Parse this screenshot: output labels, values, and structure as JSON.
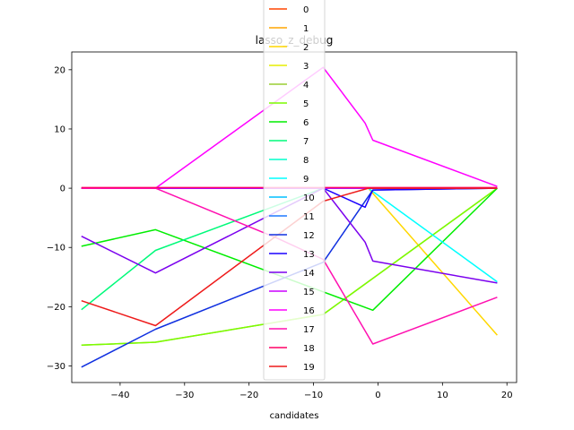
{
  "chart_data": {
    "type": "line",
    "title": "lasso_z_debug",
    "xlabel": "candidates",
    "ylabel": "",
    "xlim": [
      -47.5,
      21.5
    ],
    "ylim": [
      -32.8,
      23.0
    ],
    "xticks": [
      -40,
      -30,
      -20,
      -10,
      0,
      10,
      20
    ],
    "xtick_labels": [
      "−40",
      "−30",
      "−20",
      "−10",
      "0",
      "10",
      "20"
    ],
    "yticks": [
      -30,
      -20,
      -10,
      0,
      10,
      20
    ],
    "ytick_labels": [
      "−30",
      "−20",
      "−10",
      "0",
      "10",
      "20"
    ],
    "grid": false,
    "legend_position": "top-center",
    "series": [
      {
        "name": "0",
        "color": "#ff4500",
        "x": [
          -46,
          18.5
        ],
        "y": [
          0,
          0
        ]
      },
      {
        "name": "1",
        "color": "#ffa500",
        "x": [
          -46,
          18.5
        ],
        "y": [
          0,
          0
        ]
      },
      {
        "name": "2",
        "color": "#ffd700",
        "x": [
          -46,
          -1.5,
          18.5
        ],
        "y": [
          0,
          0,
          -24.8
        ]
      },
      {
        "name": "3",
        "color": "#e6ee00",
        "x": [
          -46,
          18.5
        ],
        "y": [
          0,
          0
        ]
      },
      {
        "name": "4",
        "color": "#9acd32",
        "x": [
          -46,
          -34.5,
          -8.5,
          18.5
        ],
        "y": [
          -26.5,
          -26.0,
          -21.3,
          0
        ]
      },
      {
        "name": "5",
        "color": "#7cfc00",
        "x": [
          -46,
          -34.5,
          -8.5,
          18.5
        ],
        "y": [
          -26.5,
          -26.0,
          -21.3,
          0
        ]
      },
      {
        "name": "6",
        "color": "#00ee00",
        "x": [
          -46,
          -34.5,
          -0.8,
          18.5
        ],
        "y": [
          -9.8,
          -7.0,
          -20.6,
          0
        ]
      },
      {
        "name": "7",
        "color": "#00fa7a",
        "x": [
          -46,
          -34.5,
          -8.5,
          18.5
        ],
        "y": [
          -20.5,
          -10.5,
          0,
          0
        ]
      },
      {
        "name": "8",
        "color": "#00ffcc",
        "x": [
          -46,
          18.5
        ],
        "y": [
          0,
          0
        ]
      },
      {
        "name": "9",
        "color": "#00ffff",
        "x": [
          -46,
          -1.5,
          18.5
        ],
        "y": [
          0,
          0,
          -15.8
        ]
      },
      {
        "name": "10",
        "color": "#00bfff",
        "x": [
          -46,
          18.5
        ],
        "y": [
          0,
          0
        ]
      },
      {
        "name": "11",
        "color": "#1e78ff",
        "x": [
          -46,
          18.5
        ],
        "y": [
          0,
          0
        ]
      },
      {
        "name": "12",
        "color": "#1030e0",
        "x": [
          -46,
          -34.5,
          -8.5,
          -0.8,
          18.5
        ],
        "y": [
          -30.2,
          -23.8,
          -12.5,
          -0.3,
          0
        ]
      },
      {
        "name": "13",
        "color": "#1a00ff",
        "x": [
          -46,
          -8.5,
          -2.0,
          -0.8,
          18.5
        ],
        "y": [
          0,
          0,
          -3.2,
          -0.3,
          0
        ]
      },
      {
        "name": "14",
        "color": "#7b00ee",
        "x": [
          -46,
          -34.5,
          -8.5,
          -2.0,
          -0.8,
          18.5
        ],
        "y": [
          -8.1,
          -14.3,
          0,
          -9.1,
          -12.3,
          -16.0
        ]
      },
      {
        "name": "15",
        "color": "#cc00ff",
        "x": [
          -46,
          18.5
        ],
        "y": [
          0,
          0
        ]
      },
      {
        "name": "16",
        "color": "#ff00ff",
        "x": [
          -46,
          -34.5,
          -8.5,
          -2.0,
          -0.8,
          18.5
        ],
        "y": [
          0,
          0,
          20.4,
          11.0,
          8.1,
          0.3
        ]
      },
      {
        "name": "17",
        "color": "#ff10b0",
        "x": [
          -46,
          -34.5,
          -15.5,
          -8.5,
          -0.8,
          18.5
        ],
        "y": [
          0,
          0,
          -8.5,
          -12.0,
          -26.3,
          -18.4
        ]
      },
      {
        "name": "18",
        "color": "#ff0066",
        "x": [
          -46,
          18.5
        ],
        "y": [
          0.1,
          0.1
        ]
      },
      {
        "name": "19",
        "color": "#ee1a1a",
        "x": [
          -46,
          -34.5,
          -8.5,
          -1.5,
          18.5
        ],
        "y": [
          -19.0,
          -23.2,
          -2.2,
          0,
          0
        ]
      }
    ]
  }
}
